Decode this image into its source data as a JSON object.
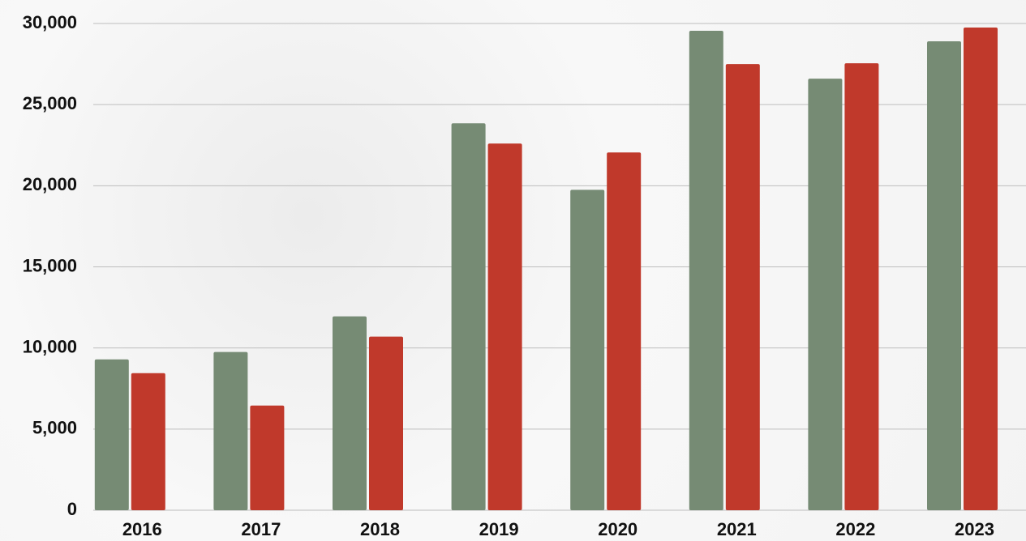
{
  "chart_data": {
    "type": "bar",
    "categories": [
      "2016",
      "2017",
      "2018",
      "2019",
      "2020",
      "2021",
      "2022",
      "2023"
    ],
    "series": [
      {
        "color": "#768b74",
        "values": [
          9300,
          9750,
          11950,
          23850,
          19750,
          29550,
          26600,
          28900
        ]
      },
      {
        "color": "#c0392b",
        "values": [
          8450,
          6450,
          10700,
          22600,
          22050,
          27500,
          27550,
          29750
        ]
      }
    ],
    "ylim": [
      0,
      30000
    ],
    "yticks": [
      0,
      {
        "value": 5000,
        "label": "5,000"
      },
      {
        "value": 10000,
        "label": "10,000"
      },
      {
        "value": 15000,
        "label": "15,000"
      },
      {
        "value": 20000,
        "label": "20,000"
      },
      {
        "value": 25000,
        "label": "25,000"
      },
      {
        "value": 30000,
        "label": "30,000"
      }
    ],
    "grid": true
  }
}
